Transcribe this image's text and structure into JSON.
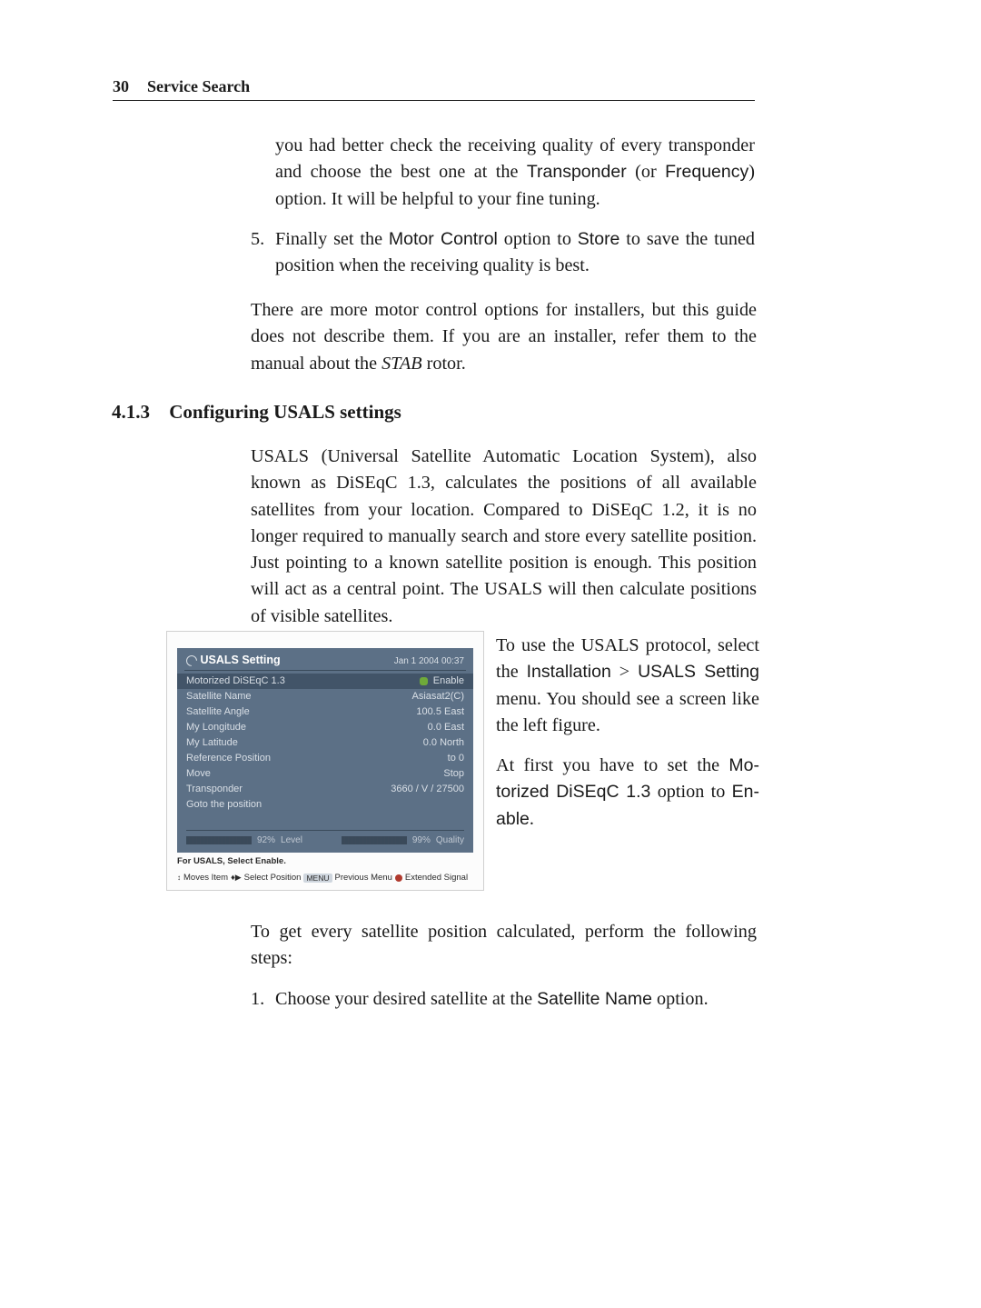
{
  "header": {
    "page_number": "30",
    "title": "Service Search"
  },
  "para1": {
    "text_a": "you had better check the receiving quality of every trans­ponder and choose the best one at the ",
    "sans1": "Transponder",
    "text_b": " (or ",
    "sans2": "Frequency",
    "text_c": ") option. It will be helpful to your fine tuning."
  },
  "item5": {
    "num": "5.",
    "text_a": "Finally set the ",
    "sans1": "Motor Control",
    "text_b": " option to ",
    "sans2": "Store",
    "text_c": " to save the tuned position when the receiving quality is best."
  },
  "para2": {
    "text_a": "There are more motor control options for installers, but this guide does not describe them. If you are an installer, refer them to the manual about the ",
    "italic1": "STAB",
    "text_b": " rotor."
  },
  "section": {
    "num": "4.1.3",
    "title": "Configuring USALS settings"
  },
  "para3": "USALS (Universal Satellite Automatic Location System), also known as DiSEqC 1.3, calculates the positions of all available satellites from your location. Compared to DiSEqC 1.2, it is no longer required to manually search and store every satellite position. Just pointing to a known satellite position is enough. This position will act as a central point. The USALS will then calculate positions of visible satellites.",
  "right1": {
    "text_a": "To use the USALS protocol, se­lect the ",
    "sans1": "Installation",
    "gt": ">",
    "sans2": "USALS Setting",
    "text_b": " menu. You should see a screen like the left figure."
  },
  "right2": {
    "text_a": "At first you have to set the ",
    "sans1": "Mo­torized DiSEqC 1.3",
    "text_b": " option to ",
    "sans2": "En­able",
    "text_c": "."
  },
  "para4": "To get every satellite position calculated, perform the following steps:",
  "item1": {
    "num": "1.",
    "text_a": "Choose your desired satellite at the ",
    "sans1": "Satellite Name",
    "text_b": " op­tion."
  },
  "usals": {
    "title": "USALS Setting",
    "datetime": "Jan 1 2004 00:37",
    "rows": [
      {
        "k": "Motorized DiSEqC 1.3",
        "v": "Enable",
        "hl": true,
        "dot": true
      },
      {
        "k": "Satellite Name",
        "v": "Asiasat2(C)"
      },
      {
        "k": "Satellite Angle",
        "v": "100.5 East"
      },
      {
        "k": "My Longitude",
        "v": "0.0 East"
      },
      {
        "k": "My Latitude",
        "v": "0.0 North"
      },
      {
        "k": "Reference Position",
        "v": "to 0"
      },
      {
        "k": "Move",
        "v": "Stop"
      },
      {
        "k": "Transponder",
        "v": "3660 / V / 27500"
      },
      {
        "k": "Goto the position",
        "v": ""
      }
    ],
    "level_pct": 92,
    "level_pct_text": "92%",
    "level_label": "Level",
    "level_color": "#d16a1e",
    "qual_pct": 99,
    "qual_pct_text": "99%",
    "qual_label": "Quality",
    "qual_color": "#b43a5a",
    "caption1": "For USALS, Select Enable.",
    "caption2": {
      "arrow_ud": "↕",
      "moves_item": "Moves Item",
      "arrow_lr": "♦▶",
      "select_pos": "Select Position",
      "menu_key": "MENU",
      "prev_menu": "Previous Menu",
      "ext_signal": "Extended Signal"
    },
    "colors": {
      "panel_bg": "#5c7086",
      "hl_bg": "#425468",
      "divider": "#3a4a5a",
      "text": "#d9dfe6",
      "title": "#ffffff",
      "dot": "#6faa3a",
      "border": "#d0d0d0",
      "outer_bg": "#fcfcfc",
      "red_dot": "#b03a2e"
    }
  }
}
